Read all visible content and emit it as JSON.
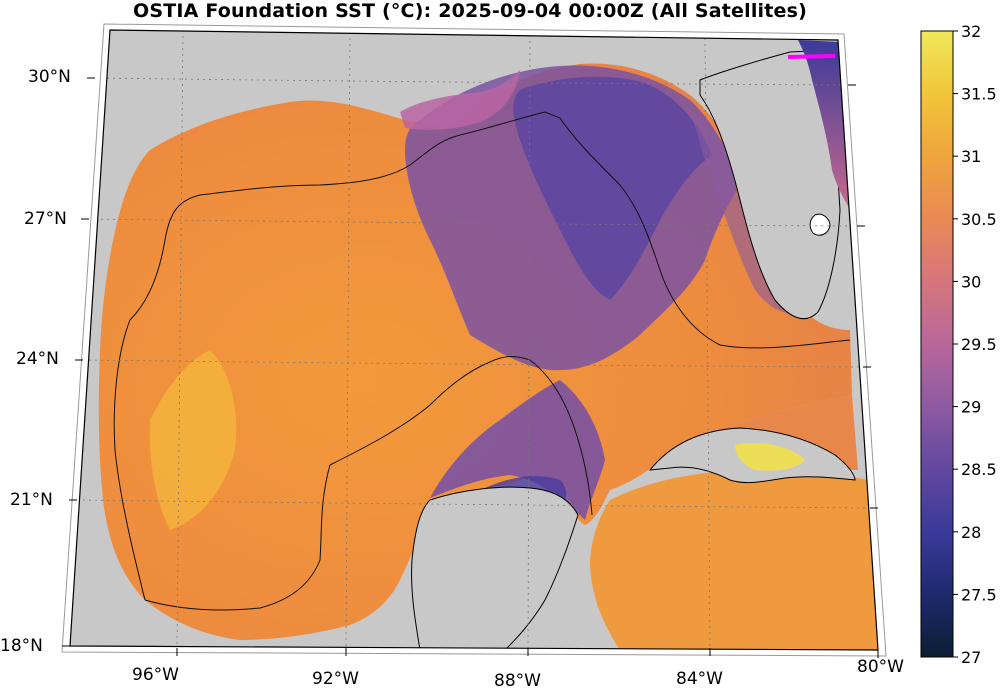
{
  "title": "OSTIA Foundation SST (°C): 2025-09-04 00:00Z (All Satellites)",
  "lat_labels": [
    "30°N",
    "27°N",
    "24°N",
    "21°N",
    "18°N"
  ],
  "lon_labels": [
    "96°W",
    "92°W",
    "88°W",
    "84°W",
    "80°W"
  ],
  "colorbar": {
    "ticks": [
      "32",
      "31.5",
      "31",
      "30.5",
      "30",
      "29.5",
      "29",
      "28.5",
      "28",
      "27.5",
      "27"
    ],
    "min": 27,
    "max": 32,
    "colors": [
      "#0b1e33",
      "#1e2a6e",
      "#3a3a9a",
      "#62489e",
      "#8e5aa2",
      "#b8679a",
      "#d6757c",
      "#e98a55",
      "#f0a43c",
      "#f1c63a",
      "#f0e85a"
    ]
  },
  "colors": {
    "land": "#c8c8c8",
    "warm_sst": "#f0913a",
    "cool_sst": "#6a4aa4",
    "front_marker": "#ff00ff"
  }
}
